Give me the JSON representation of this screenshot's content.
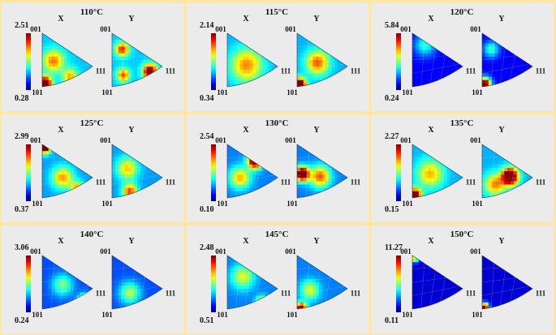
{
  "figure": {
    "panels": [
      {
        "temperature": "110°C",
        "colorbar": {
          "max": "2.51",
          "min": "0.28"
        },
        "x_label": "X",
        "y_label": "Y",
        "x_figure": {
          "pole_top": "001",
          "pole_bottom": "101",
          "pole_right": "111"
        },
        "y_figure": {
          "pole_top": "001",
          "pole_bottom": "101",
          "pole_right": "111"
        }
      },
      {
        "temperature": "115°C",
        "colorbar": {
          "max": "2.14",
          "min": "0.34"
        },
        "x_label": "X",
        "y_label": "Y",
        "x_figure": {
          "pole_top": "001",
          "pole_bottom": "101",
          "pole_right": "111"
        },
        "y_figure": {
          "pole_top": "001",
          "pole_bottom": "101",
          "pole_right": "111"
        }
      },
      {
        "temperature": "120°C",
        "colorbar": {
          "max": "5.84",
          "min": "0.24"
        },
        "x_label": "X",
        "y_label": "Y",
        "x_figure": {
          "pole_top": "001",
          "pole_bottom": "101",
          "pole_right": "111"
        },
        "y_figure": {
          "pole_top": "001",
          "pole_bottom": "101",
          "pole_right": "111"
        }
      },
      {
        "temperature": "125°C",
        "colorbar": {
          "max": "2.99",
          "min": "0.37"
        },
        "x_label": "X",
        "y_label": "Y",
        "x_figure": {
          "pole_top": "001",
          "pole_bottom": "101",
          "pole_right": "111"
        },
        "y_figure": {
          "pole_top": "001",
          "pole_bottom": "101",
          "pole_right": "111"
        }
      },
      {
        "temperature": "130°C",
        "colorbar": {
          "max": "2.54",
          "min": "0.10"
        },
        "x_label": "X",
        "y_label": "Y",
        "x_figure": {
          "pole_top": "001",
          "pole_bottom": "101",
          "pole_right": "111"
        },
        "y_figure": {
          "pole_top": "001",
          "pole_bottom": "101",
          "pole_right": "111"
        }
      },
      {
        "temperature": "135°C",
        "colorbar": {
          "max": "2.27",
          "min": "0.15"
        },
        "x_label": "X",
        "y_label": "Y",
        "x_figure": {
          "pole_top": "001",
          "pole_bottom": "101",
          "pole_right": "111"
        },
        "y_figure": {
          "pole_top": "001",
          "pole_bottom": "101",
          "pole_right": "111"
        }
      },
      {
        "temperature": "140°C",
        "colorbar": {
          "max": "3.06",
          "min": "0.24"
        },
        "x_label": "X",
        "y_label": "Y",
        "x_figure": {
          "pole_top": "001",
          "pole_bottom": "101",
          "pole_right": "111"
        },
        "y_figure": {
          "pole_top": "001",
          "pole_bottom": "101",
          "pole_right": "111"
        }
      },
      {
        "temperature": "145°C",
        "colorbar": {
          "max": "2.48",
          "min": "0.51"
        },
        "x_label": "X",
        "y_label": "Y",
        "x_figure": {
          "pole_top": "001",
          "pole_bottom": "101",
          "pole_right": "111"
        },
        "y_figure": {
          "pole_top": "001",
          "pole_bottom": "101",
          "pole_right": "111"
        }
      },
      {
        "temperature": "150°C",
        "colorbar": {
          "max": "11.27",
          "min": "0.11"
        },
        "x_label": "X",
        "y_label": "Y",
        "x_figure": {
          "pole_top": "001",
          "pole_bottom": "101",
          "pole_right": "111"
        },
        "y_figure": {
          "pole_top": "001",
          "pole_bottom": "101",
          "pole_right": "111"
        }
      }
    ],
    "colors": {
      "background": "#fde7a8",
      "panel": "#ebebeb",
      "colormap": [
        "#00008f",
        "#0000ff",
        "#00a0ff",
        "#00ffff",
        "#7fff7f",
        "#ffff00",
        "#ff7f00",
        "#ff0000",
        "#8f0000"
      ]
    }
  }
}
